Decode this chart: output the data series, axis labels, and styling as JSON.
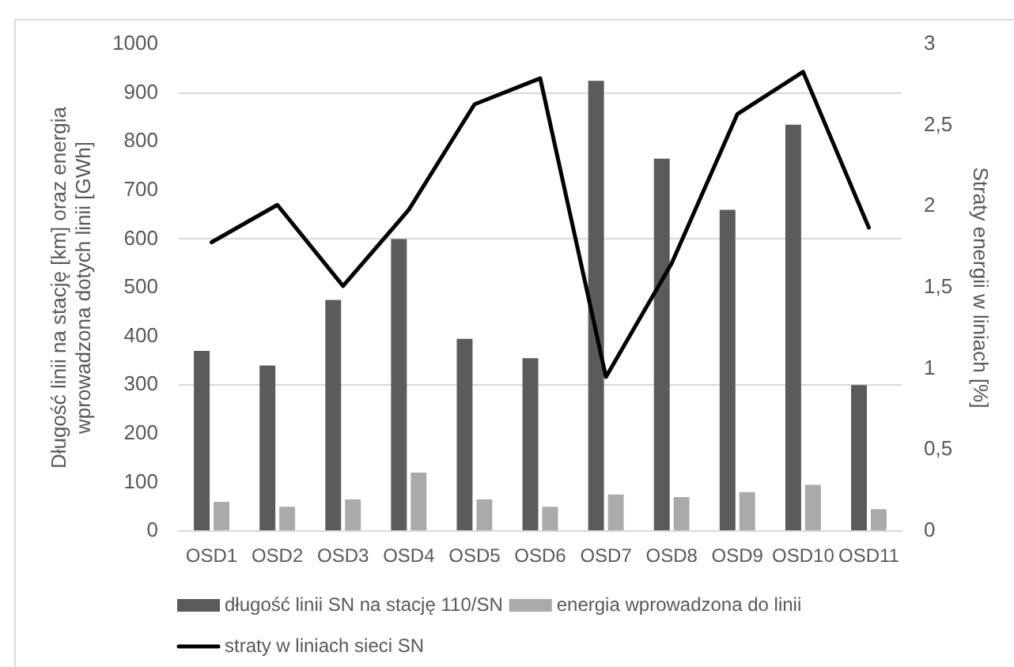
{
  "chart_data": {
    "type": "bar",
    "categories": [
      "OSD1",
      "OSD2",
      "OSD3",
      "OSD4",
      "OSD5",
      "OSD6",
      "OSD7",
      "OSD8",
      "OSD9",
      "OSD10",
      "OSD11"
    ],
    "ylabel": "Długość linii na stację [km] oraz energia wprowadzona dotych linii [GWh]",
    "y2label": "Straty energii w liniach [%]",
    "series": [
      {
        "name": "długość linii SN na stację 110/SN",
        "color": "#5b5b5b",
        "values": [
          370,
          340,
          475,
          600,
          395,
          355,
          925,
          765,
          660,
          835,
          300
        ]
      },
      {
        "name": "energia wprowadzona do linii",
        "color": "#aaaaaa",
        "values": [
          60,
          50,
          65,
          120,
          65,
          50,
          75,
          70,
          80,
          95,
          45
        ]
      },
      {
        "name": "straty w liniach sieci SN",
        "type": "line",
        "axis": "y2",
        "color": "#000000",
        "values": [
          1.78,
          2.01,
          1.51,
          1.98,
          2.63,
          2.79,
          0.95,
          1.65,
          2.57,
          2.83,
          1.87
        ]
      }
    ],
    "ylim": [
      0,
      1000
    ],
    "yticks": [
      0,
      100,
      200,
      300,
      400,
      500,
      600,
      700,
      800,
      900,
      1000
    ],
    "y2lim": [
      0,
      3
    ],
    "y2ticks": [
      0,
      {
        "value": 0.5,
        "label": "0,5"
      },
      1,
      {
        "value": 1.5,
        "label": "1,5"
      },
      2,
      {
        "value": 2.5,
        "label": "2,5"
      },
      3
    ],
    "grid": "y",
    "legend": "bottom"
  }
}
